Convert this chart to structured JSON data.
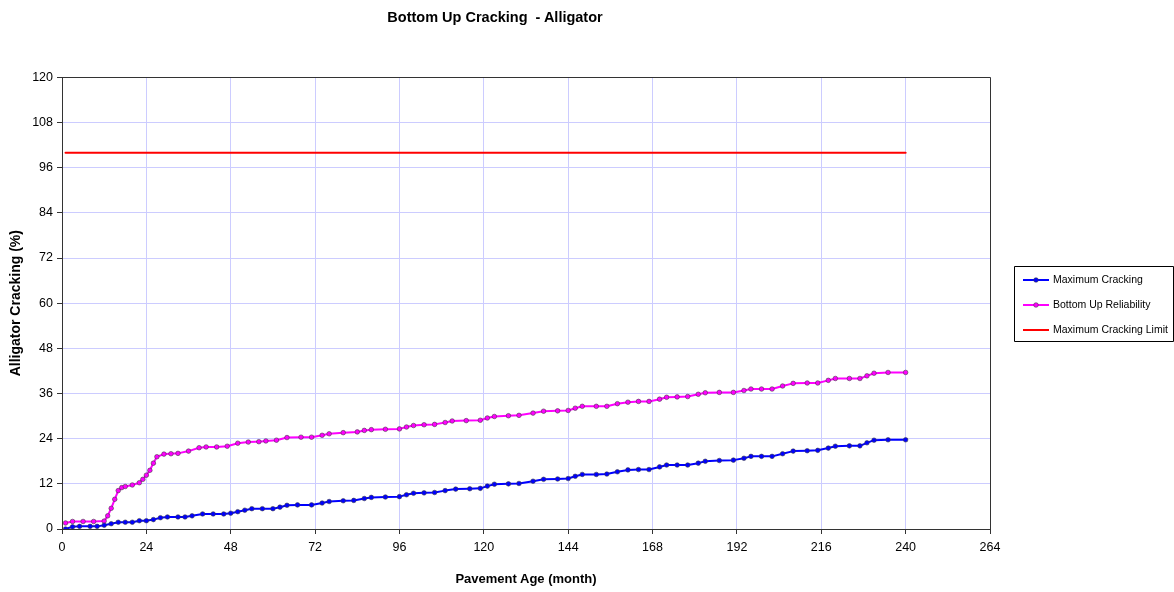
{
  "chart_data": {
    "type": "line",
    "title": "Bottom Up Cracking  - Alligator",
    "xlabel": "Pavement Age (month)",
    "ylabel": "Alligator Cracking (%)",
    "xlim": [
      0,
      264
    ],
    "xticks": [
      0,
      24,
      48,
      72,
      96,
      120,
      144,
      168,
      192,
      216,
      240,
      264
    ],
    "ylim": [
      0,
      120
    ],
    "yticks": [
      0,
      12,
      24,
      36,
      48,
      60,
      72,
      84,
      96,
      108,
      120
    ],
    "grid": true,
    "legend": "right",
    "marker": "circle",
    "series": [
      {
        "name": "Maximum Cracking",
        "color": "#0000ff",
        "x": [
          1,
          3,
          5,
          8,
          10,
          12,
          14,
          16,
          18,
          20,
          22,
          24,
          26,
          28,
          30,
          33,
          35,
          37,
          40,
          43,
          46,
          48,
          50,
          52,
          54,
          57,
          60,
          62,
          64,
          67,
          71,
          74,
          76,
          80,
          83,
          86,
          88,
          92,
          96,
          98,
          100,
          103,
          106,
          109,
          112,
          116,
          119,
          121,
          123,
          127,
          130,
          134,
          137,
          141,
          144,
          146,
          148,
          152,
          155,
          158,
          161,
          164,
          167,
          170,
          172,
          175,
          178,
          181,
          183,
          187,
          191,
          194,
          196,
          199,
          202,
          205,
          208,
          212,
          215,
          218,
          220,
          224,
          227,
          229,
          231,
          235,
          240
        ],
        "values": [
          0,
          0.6,
          0.7,
          0.7,
          0.7,
          1.0,
          1.4,
          1.8,
          1.8,
          1.8,
          2.2,
          2.2,
          2.5,
          3.0,
          3.2,
          3.2,
          3.2,
          3.5,
          4.0,
          4.0,
          4.0,
          4.2,
          4.6,
          5.0,
          5.4,
          5.4,
          5.4,
          5.8,
          6.3,
          6.4,
          6.4,
          6.9,
          7.3,
          7.5,
          7.6,
          8.1,
          8.4,
          8.5,
          8.6,
          9.1,
          9.5,
          9.6,
          9.7,
          10.2,
          10.6,
          10.7,
          10.8,
          11.4,
          11.9,
          12.0,
          12.1,
          12.7,
          13.2,
          13.3,
          13.4,
          14.0,
          14.5,
          14.5,
          14.6,
          15.2,
          15.7,
          15.8,
          15.8,
          16.5,
          17.0,
          17.0,
          17.0,
          17.5,
          18.0,
          18.2,
          18.3,
          18.8,
          19.3,
          19.3,
          19.3,
          20.0,
          20.7,
          20.8,
          20.9,
          21.5,
          22.0,
          22.1,
          22.1,
          22.9,
          23.6,
          23.7,
          23.7
        ]
      },
      {
        "name": "Bottom Up Reliability",
        "color": "#ff00ff",
        "x": [
          1,
          3,
          6,
          9,
          12,
          13,
          14,
          15,
          16,
          17,
          18,
          20,
          22,
          23,
          24,
          25,
          26,
          27,
          29,
          31,
          33,
          36,
          39,
          41,
          44,
          47,
          50,
          53,
          56,
          58,
          61,
          64,
          68,
          71,
          74,
          76,
          80,
          84,
          86,
          88,
          92,
          96,
          98,
          100,
          103,
          106,
          109,
          111,
          115,
          119,
          121,
          123,
          127,
          130,
          134,
          137,
          141,
          144,
          146,
          148,
          152,
          155,
          158,
          161,
          164,
          167,
          170,
          172,
          175,
          178,
          181,
          183,
          187,
          191,
          194,
          196,
          199,
          202,
          205,
          208,
          212,
          215,
          218,
          220,
          224,
          227,
          229,
          231,
          235,
          240
        ],
        "values": [
          1.6,
          2.0,
          2.0,
          2.0,
          2.1,
          3.5,
          5.5,
          7.9,
          10.2,
          11.0,
          11.3,
          11.7,
          12.3,
          13.2,
          14.3,
          15.6,
          17.5,
          19.2,
          19.9,
          20.0,
          20.1,
          20.7,
          21.6,
          21.8,
          21.8,
          22.0,
          22.8,
          23.1,
          23.2,
          23.4,
          23.6,
          24.3,
          24.4,
          24.4,
          24.9,
          25.3,
          25.6,
          25.8,
          26.2,
          26.4,
          26.5,
          26.6,
          27.1,
          27.5,
          27.7,
          27.8,
          28.3,
          28.7,
          28.8,
          28.9,
          29.5,
          29.9,
          30.1,
          30.2,
          30.8,
          31.3,
          31.4,
          31.5,
          32.1,
          32.6,
          32.6,
          32.6,
          33.3,
          33.7,
          33.9,
          33.9,
          34.5,
          35.0,
          35.1,
          35.2,
          35.8,
          36.2,
          36.3,
          36.3,
          36.8,
          37.2,
          37.2,
          37.2,
          38.0,
          38.7,
          38.8,
          38.8,
          39.5,
          40.0,
          40.0,
          40.0,
          40.7,
          41.4,
          41.6,
          41.6
        ]
      },
      {
        "name": "Maximum Cracking Limit",
        "color": "#ff0000",
        "marker": "none",
        "x": [
          1,
          240
        ],
        "values": [
          100,
          100
        ]
      }
    ]
  }
}
